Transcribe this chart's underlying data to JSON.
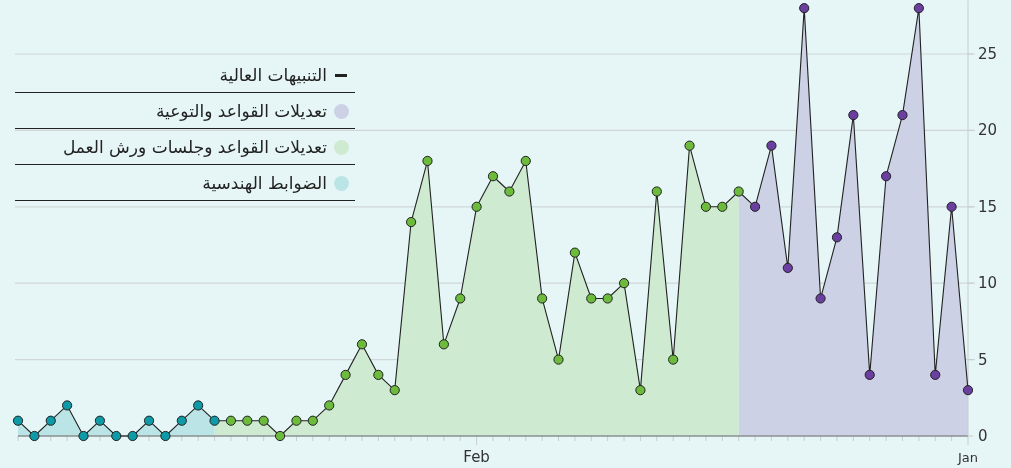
{
  "chart_data": {
    "type": "area",
    "grid": "y",
    "legend": "top left",
    "ylim": [
      0,
      28.5
    ],
    "yticks": [
      0,
      5,
      10,
      15,
      20,
      25
    ],
    "categories": [
      null,
      null,
      null,
      null,
      null,
      null,
      null,
      null,
      null,
      null,
      null,
      null,
      null,
      null,
      null,
      null,
      null,
      null,
      null,
      null,
      null,
      null,
      null,
      null,
      null,
      null,
      null,
      null,
      "Feb",
      null,
      null,
      null,
      null,
      null,
      null,
      null,
      null,
      null,
      null,
      null,
      null,
      null,
      null,
      null,
      null,
      null,
      null,
      null,
      null,
      null,
      null,
      null,
      null,
      null,
      null,
      null,
      null,
      null,
      "Jan"
    ],
    "series": [
      {
        "name": "التنبيهات العالية",
        "type": "line",
        "marker": "circle",
        "color": "#222222",
        "values": [
          1,
          0,
          1,
          2,
          0,
          1,
          0,
          0,
          1,
          0,
          1,
          2,
          1,
          1,
          1,
          1,
          0,
          1,
          1,
          2,
          4,
          6,
          4,
          3,
          14,
          18,
          6,
          9,
          15,
          17,
          16,
          18,
          9,
          5,
          12,
          9,
          9,
          10,
          3,
          16,
          5,
          19,
          15,
          15,
          16,
          15,
          19,
          11,
          28,
          9,
          13,
          21,
          4,
          17,
          21,
          28,
          4,
          15,
          3
        ],
        "colors": [
          "#0e9aa7",
          "#0e9aa7",
          "#0e9aa7",
          "#0e9aa7",
          "#0e9aa7",
          "#0e9aa7",
          "#0e9aa7",
          "#0e9aa7",
          "#0e9aa7",
          "#0e9aa7",
          "#0e9aa7",
          "#0e9aa7",
          "#0e9aa7",
          "#6dbb3c",
          "#6dbb3c",
          "#6dbb3c",
          "#6dbb3c",
          "#6dbb3c",
          "#6dbb3c",
          "#6dbb3c",
          "#6dbb3c",
          "#6dbb3c",
          "#6dbb3c",
          "#6dbb3c",
          "#6dbb3c",
          "#6dbb3c",
          "#6dbb3c",
          "#6dbb3c",
          "#6dbb3c",
          "#6dbb3c",
          "#6dbb3c",
          "#6dbb3c",
          "#6dbb3c",
          "#6dbb3c",
          "#6dbb3c",
          "#6dbb3c",
          "#6dbb3c",
          "#6dbb3c",
          "#6dbb3c",
          "#6dbb3c",
          "#6dbb3c",
          "#6dbb3c",
          "#6dbb3c",
          "#6dbb3c",
          "#6dbb3c",
          "#6b3fa0",
          "#6b3fa0",
          "#6b3fa0",
          "#6b3fa0",
          "#6b3fa0",
          "#6b3fa0",
          "#6b3fa0",
          "#6b3fa0",
          "#6b3fa0",
          "#6b3fa0",
          "#6b3fa0",
          "#6b3fa0",
          "#6b3fa0",
          "#6b3fa0"
        ]
      },
      {
        "name": "تعديلات القواعد والتوعية",
        "color": "#cdd1e5",
        "values": [
          null,
          null,
          null,
          null,
          null,
          null,
          null,
          null,
          null,
          null,
          null,
          null,
          null,
          null,
          null,
          null,
          null,
          null,
          null,
          null,
          null,
          null,
          null,
          null,
          null,
          null,
          null,
          null,
          null,
          null,
          null,
          null,
          null,
          null,
          null,
          null,
          null,
          null,
          null,
          null,
          null,
          null,
          null,
          null,
          16,
          15,
          19,
          11,
          28,
          9,
          13,
          21,
          4,
          17,
          21,
          28,
          4,
          15,
          3
        ]
      },
      {
        "name": "تعديلات القواعد وجلسات ورش العمل",
        "color": "#ceead1",
        "values": [
          null,
          null,
          null,
          null,
          null,
          null,
          null,
          null,
          null,
          null,
          null,
          null,
          1,
          1,
          1,
          1,
          0,
          1,
          1,
          2,
          4,
          6,
          4,
          3,
          14,
          18,
          6,
          9,
          15,
          17,
          16,
          18,
          9,
          5,
          12,
          9,
          9,
          10,
          3,
          16,
          5,
          19,
          15,
          15,
          16,
          null,
          null,
          null,
          null,
          null,
          null,
          null,
          null,
          null,
          null,
          null,
          null,
          null,
          null
        ]
      },
      {
        "name": "الضوابط الهندسية",
        "color": "#bbe4e6",
        "values": [
          1,
          0,
          1,
          2,
          0,
          1,
          0,
          0,
          1,
          0,
          1,
          2,
          1,
          null,
          null,
          null,
          null,
          null,
          null,
          null,
          null,
          null,
          null,
          null,
          null,
          null,
          null,
          null,
          null,
          null,
          null,
          null,
          null,
          null,
          null,
          null,
          null,
          null,
          null,
          null,
          null,
          null,
          null,
          null,
          null,
          null,
          null,
          null,
          null,
          null,
          null,
          null,
          null,
          null,
          null,
          null,
          null,
          null,
          null
        ]
      }
    ]
  }
}
